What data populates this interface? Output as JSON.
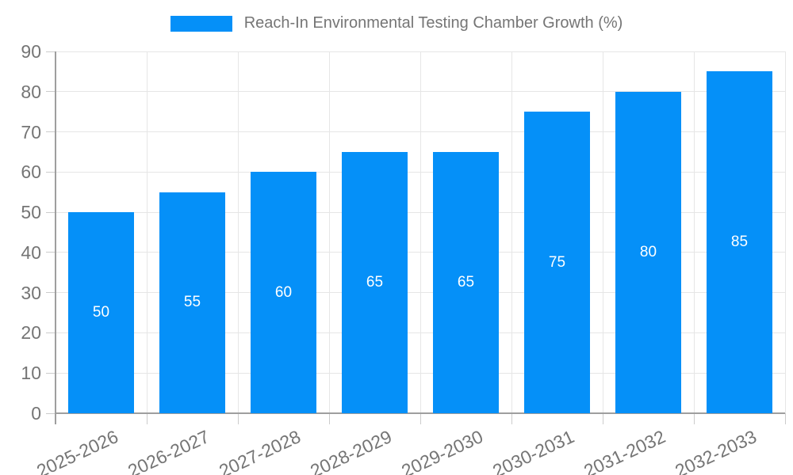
{
  "legend": {
    "label": "Reach-In Environmental Testing Chamber Growth (%)"
  },
  "chart_data": {
    "type": "bar",
    "title": "Reach-In Environmental Testing Chamber Growth (%)",
    "categories": [
      "2025-2026",
      "2026-2027",
      "2027-2028",
      "2028-2029",
      "2029-2030",
      "2030-2031",
      "2031-2032",
      "2032-2033"
    ],
    "values": [
      50,
      55,
      60,
      65,
      65,
      75,
      80,
      85
    ],
    "value_labels": [
      "50",
      "55",
      "60",
      "65",
      "65",
      "75",
      "80",
      "85"
    ],
    "xlabel": "",
    "ylabel": "",
    "ylim": [
      0,
      90
    ],
    "yticks": [
      0,
      10,
      20,
      30,
      40,
      50,
      60,
      70,
      80,
      90
    ],
    "grid": "on",
    "legend_position": "top-center",
    "x_label_rotation_deg": -25,
    "colors": {
      "bar": "#0590f8",
      "value_label": "#ffffff",
      "axis_text": "#757575",
      "gridline": "#e6e6e6",
      "tick": "#cccccc",
      "axis_line": "#9e9e9e",
      "background": "#ffffff"
    }
  }
}
